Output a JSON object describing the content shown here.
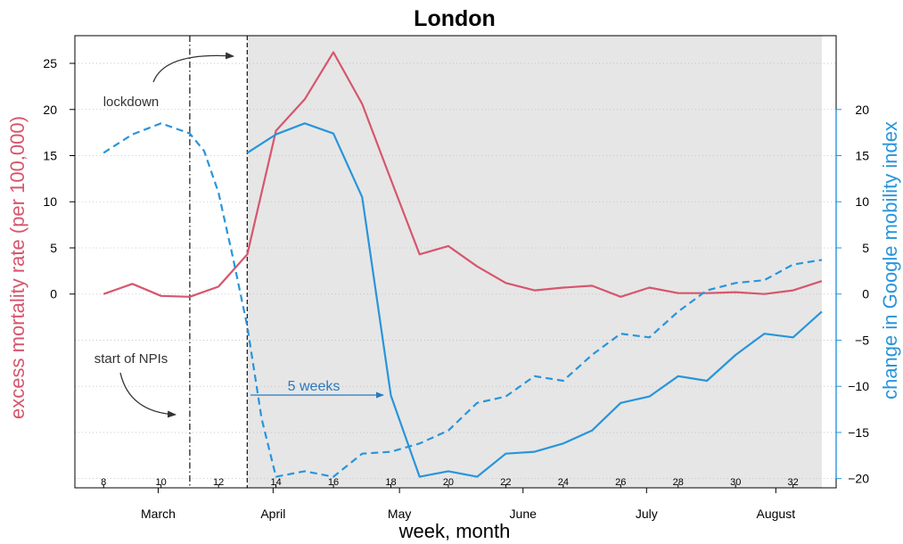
{
  "chart_data": {
    "type": "line",
    "title": "London",
    "xlabel": "week, month",
    "ylabel_left": "excess mortality rate (per 100,000)",
    "ylabel_right": "change in Google mobility index",
    "x_range": [
      7,
      33.5
    ],
    "ylim_left": [
      -21,
      28
    ],
    "ylim_right": [
      -21,
      28
    ],
    "yticks_left": [
      "0",
      "5",
      "10",
      "15",
      "20",
      "25"
    ],
    "yticks_right": [
      "−20",
      "−15",
      "−10",
      "−5",
      "0",
      "5",
      "10",
      "15",
      "20"
    ],
    "week_ticks": [
      "8",
      "10",
      "12",
      "14",
      "16",
      "18",
      "20",
      "22",
      "24",
      "26",
      "28",
      "30",
      "32"
    ],
    "months": [
      {
        "label": "March",
        "week": 9.9
      },
      {
        "label": "April",
        "week": 13.9
      },
      {
        "label": "May",
        "week": 18.3
      },
      {
        "label": "June",
        "week": 22.6
      },
      {
        "label": "July",
        "week": 26.9
      },
      {
        "label": "August",
        "week": 31.4
      }
    ],
    "shaded_region": {
      "from_week": 13,
      "to_week": 33
    },
    "vlines": [
      {
        "week": 11,
        "style": "dotdash"
      },
      {
        "week": 13,
        "style": "dashed"
      }
    ],
    "grid": "horizontal-dotted",
    "series": [
      {
        "role": "excess mortality",
        "axis": "left",
        "color": "#D6566E",
        "style": "solid",
        "x": [
          8,
          9,
          10,
          11,
          12,
          13,
          14,
          15,
          16,
          17,
          18,
          19,
          20,
          21,
          22,
          23,
          24,
          25,
          26,
          27,
          28,
          29,
          30,
          31,
          32,
          33
        ],
        "y": [
          0.0,
          1.1,
          -0.2,
          -0.3,
          0.8,
          4.3,
          17.7,
          21.1,
          26.2,
          20.6,
          12.4,
          4.3,
          5.2,
          3.0,
          1.2,
          0.4,
          0.7,
          0.9,
          -0.3,
          0.7,
          0.1,
          0.1,
          0.2,
          0.0,
          0.4,
          1.4
        ]
      },
      {
        "role": "mobility (observed, lagged)",
        "axis": "right",
        "color": "#2895DB",
        "style": "dashed",
        "x": [
          8,
          9,
          10,
          11,
          11.5,
          12,
          12.5,
          13,
          13.5,
          14,
          15,
          16,
          17,
          18,
          19,
          20,
          21,
          22,
          23,
          24,
          25,
          26,
          27,
          28,
          29,
          30,
          31,
          32,
          33
        ],
        "y": [
          15.3,
          17.3,
          18.5,
          17.4,
          15.5,
          11.0,
          4.0,
          -3.5,
          -13.5,
          -19.8,
          -19.2,
          -19.8,
          -17.3,
          -17.1,
          -16.2,
          -14.8,
          -11.8,
          -11.1,
          -8.9,
          -9.4,
          -6.6,
          -4.3,
          -4.7,
          -1.9,
          0.4,
          1.2,
          1.5,
          3.2,
          3.7
        ]
      },
      {
        "role": "mobility (shifted 5 weeks)",
        "axis": "right",
        "color": "#2895DB",
        "style": "solid",
        "x": [
          13,
          14,
          15,
          16,
          17,
          18,
          19,
          20,
          21,
          22,
          23,
          24,
          25,
          26,
          27,
          28,
          29,
          30,
          31,
          32,
          33
        ],
        "y": [
          15.3,
          17.3,
          18.5,
          17.4,
          10.5,
          -11.0,
          -19.8,
          -19.2,
          -19.8,
          -17.3,
          -17.1,
          -16.2,
          -14.8,
          -11.8,
          -11.1,
          -8.9,
          -9.4,
          -6.6,
          -4.3,
          -4.7,
          -1.9
        ]
      }
    ],
    "annotations": [
      {
        "text": "lockdown",
        "week": 10.0,
        "value": 21.0
      },
      {
        "text": "start of NPIs",
        "week": 10.0,
        "value": -7.5
      },
      {
        "text": "5 weeks",
        "week": 15.5,
        "value": -10.6,
        "color": "#2A78BE"
      }
    ]
  }
}
